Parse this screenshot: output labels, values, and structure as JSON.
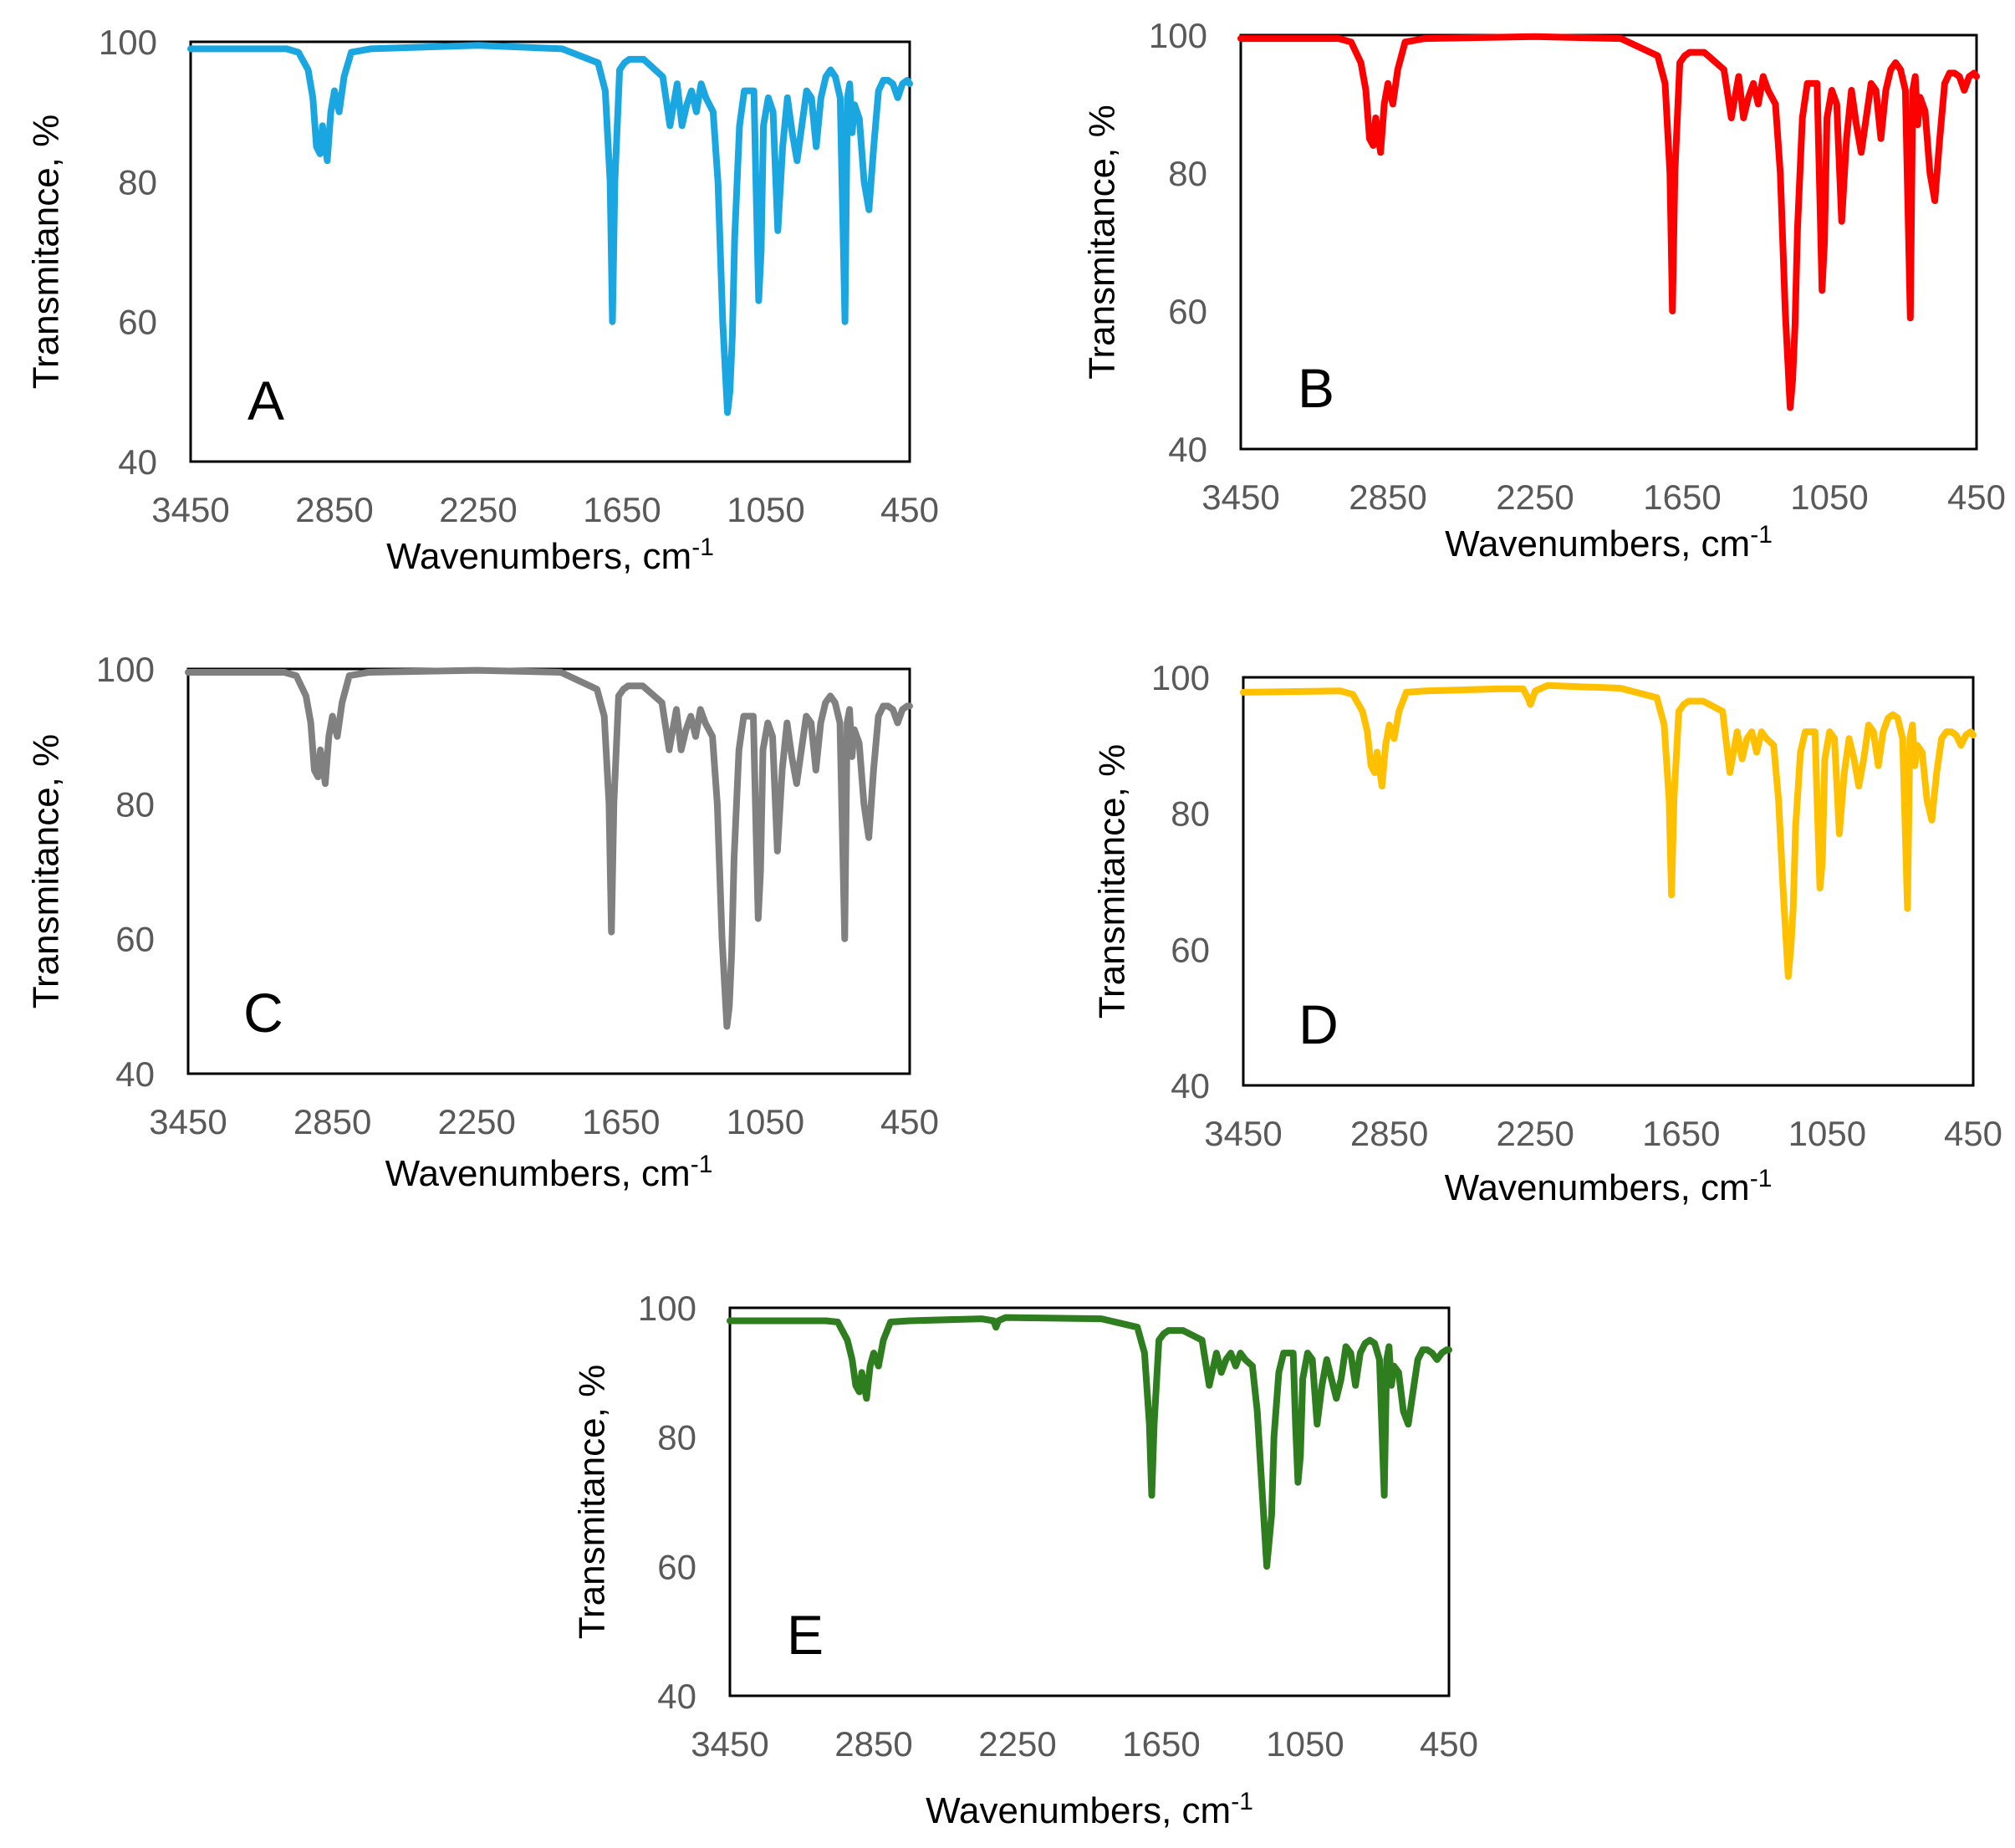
{
  "chart_data": [
    {
      "type": "line",
      "panel_label": "A",
      "color": "#1AA6E0",
      "xlabel": "Wavenumbers, cm",
      "xlabel_sup": "-1",
      "ylabel": "Transmitance, %",
      "xlim": [
        3450,
        450
      ],
      "ylim": [
        40,
        100
      ],
      "x_ticks": [
        "3450",
        "2850",
        "2250",
        "1650",
        "1050",
        "450"
      ],
      "y_ticks": [
        "40",
        "60",
        "80",
        "100"
      ],
      "series": [
        {
          "name": "A",
          "x": [
            3450,
            3050,
            3000,
            2960,
            2940,
            2925,
            2910,
            2900,
            2880,
            2865,
            2850,
            2830,
            2810,
            2780,
            2700,
            2250,
            1900,
            1750,
            1720,
            1700,
            1690,
            1680,
            1660,
            1640,
            1620,
            1560,
            1480,
            1450,
            1420,
            1400,
            1380,
            1360,
            1340,
            1320,
            1300,
            1270,
            1250,
            1230,
            1210,
            1200,
            1190,
            1180,
            1160,
            1140,
            1100,
            1090,
            1080,
            1070,
            1060,
            1040,
            1020,
            1000,
            980,
            960,
            940,
            920,
            900,
            880,
            860,
            840,
            820,
            800,
            780,
            760,
            740,
            720,
            710,
            700,
            690,
            680,
            660,
            640,
            620,
            600,
            580,
            560,
            540,
            520,
            500,
            480,
            460,
            450
          ],
          "y": [
            99,
            99,
            98.5,
            96,
            92,
            85,
            84,
            88,
            83,
            90,
            93,
            90,
            95,
            98.5,
            99,
            99.5,
            99,
            97,
            93,
            80,
            60,
            80,
            96,
            97,
            97.5,
            97.5,
            95,
            88,
            94,
            88,
            91,
            93,
            90,
            94,
            92,
            90,
            80,
            60,
            47,
            50,
            58,
            72,
            88,
            93,
            93,
            78,
            63,
            70,
            88,
            92,
            90,
            73,
            85,
            92,
            87,
            83,
            88,
            93,
            92,
            85,
            92,
            95,
            96,
            95,
            92,
            60,
            92,
            94,
            87,
            91,
            89,
            80,
            76,
            85,
            93,
            94.5,
            94.5,
            94,
            92,
            94,
            94.5,
            94
          ]
        }
      ]
    },
    {
      "type": "line",
      "panel_label": "B",
      "color": "#FF0000",
      "xlabel": "Wavenumbers, cm",
      "xlabel_sup": "-1",
      "ylabel": "Transmitance, %",
      "xlim": [
        3450,
        450
      ],
      "ylim": [
        40,
        100
      ],
      "x_ticks": [
        "3450",
        "2850",
        "2250",
        "1650",
        "1050",
        "450"
      ],
      "y_ticks": [
        "40",
        "60",
        "80",
        "100"
      ],
      "series": [
        {
          "name": "B",
          "x": [
            3450,
            3050,
            3000,
            2960,
            2940,
            2925,
            2910,
            2900,
            2880,
            2865,
            2850,
            2830,
            2810,
            2780,
            2700,
            2250,
            1900,
            1750,
            1720,
            1700,
            1690,
            1680,
            1660,
            1640,
            1620,
            1560,
            1480,
            1450,
            1420,
            1400,
            1380,
            1360,
            1340,
            1320,
            1300,
            1270,
            1250,
            1230,
            1210,
            1200,
            1190,
            1180,
            1160,
            1140,
            1100,
            1090,
            1080,
            1070,
            1060,
            1040,
            1020,
            1000,
            980,
            960,
            940,
            920,
            900,
            880,
            860,
            840,
            820,
            800,
            780,
            760,
            740,
            720,
            710,
            700,
            690,
            680,
            660,
            640,
            620,
            600,
            580,
            560,
            540,
            520,
            500,
            480,
            460,
            450
          ],
          "y": [
            99.5,
            99.5,
            99,
            96,
            92,
            85,
            84,
            88,
            83,
            90,
            93,
            90,
            95,
            99,
            99.5,
            99.8,
            99.5,
            97,
            93,
            80,
            60,
            80,
            96,
            97,
            97.5,
            97.5,
            95,
            88,
            94,
            88,
            91,
            93,
            90,
            94,
            92,
            90,
            80,
            60,
            46,
            50,
            58,
            72,
            88,
            93,
            93,
            78,
            63,
            70,
            88,
            92,
            90,
            73,
            85,
            92,
            87,
            83,
            88,
            93,
            92,
            85,
            92,
            95,
            96,
            95,
            92,
            59,
            92,
            94,
            87,
            91,
            89,
            80,
            76,
            85,
            93,
            94.5,
            94.5,
            94,
            92,
            94,
            94.5,
            94
          ]
        }
      ]
    },
    {
      "type": "line",
      "panel_label": "C",
      "color": "#808080",
      "xlabel": "Wavenumbers, cm",
      "xlabel_sup": "-1",
      "ylabel": "Transmitance, %",
      "xlim": [
        3450,
        450
      ],
      "ylim": [
        40,
        100
      ],
      "x_ticks": [
        "3450",
        "2850",
        "2250",
        "1650",
        "1050",
        "450"
      ],
      "y_ticks": [
        "40",
        "60",
        "80",
        "100"
      ],
      "series": [
        {
          "name": "C",
          "x": [
            3450,
            3050,
            3000,
            2960,
            2940,
            2925,
            2910,
            2900,
            2880,
            2865,
            2850,
            2830,
            2810,
            2780,
            2700,
            2250,
            1900,
            1750,
            1720,
            1700,
            1690,
            1680,
            1660,
            1640,
            1620,
            1560,
            1480,
            1450,
            1420,
            1400,
            1380,
            1360,
            1340,
            1320,
            1300,
            1270,
            1250,
            1230,
            1210,
            1200,
            1190,
            1180,
            1160,
            1140,
            1100,
            1090,
            1080,
            1070,
            1060,
            1040,
            1020,
            1000,
            980,
            960,
            940,
            920,
            900,
            880,
            860,
            840,
            820,
            800,
            780,
            760,
            740,
            720,
            710,
            700,
            690,
            680,
            660,
            640,
            620,
            600,
            580,
            560,
            540,
            520,
            500,
            480,
            460,
            450
          ],
          "y": [
            99.5,
            99.5,
            99,
            96,
            92,
            85,
            84,
            88,
            83,
            90,
            93,
            90,
            95,
            99,
            99.5,
            99.8,
            99.5,
            97,
            93,
            80,
            61,
            80,
            96,
            97,
            97.5,
            97.5,
            95,
            88,
            94,
            88,
            91,
            93,
            90,
            94,
            92,
            90,
            80,
            60,
            47,
            50,
            58,
            72,
            88,
            93,
            93,
            78,
            63,
            70,
            88,
            92,
            90,
            73,
            85,
            92,
            87,
            83,
            88,
            93,
            92,
            85,
            92,
            95,
            96,
            95,
            92,
            60,
            92,
            94,
            87,
            91,
            89,
            80,
            75,
            85,
            93,
            94.5,
            94.5,
            94,
            92,
            94,
            94.5,
            94.5
          ]
        }
      ]
    },
    {
      "type": "line",
      "panel_label": "D",
      "color": "#FFC000",
      "xlabel": "Wavenumbers, cm",
      "xlabel_sup": "-1",
      "ylabel": "Transmitance, %",
      "xlim": [
        3450,
        450
      ],
      "ylim": [
        40,
        100
      ],
      "x_ticks": [
        "3450",
        "2850",
        "2250",
        "1650",
        "1050",
        "450"
      ],
      "y_ticks": [
        "40",
        "60",
        "80",
        "100"
      ],
      "series": [
        {
          "name": "D",
          "x": [
            3450,
            3050,
            3000,
            2960,
            2940,
            2925,
            2910,
            2900,
            2880,
            2865,
            2850,
            2830,
            2810,
            2780,
            2700,
            2400,
            2300,
            2280,
            2270,
            2260,
            2250,
            2200,
            1900,
            1750,
            1720,
            1700,
            1690,
            1680,
            1660,
            1640,
            1620,
            1560,
            1480,
            1450,
            1420,
            1400,
            1380,
            1360,
            1340,
            1320,
            1300,
            1270,
            1250,
            1230,
            1210,
            1200,
            1190,
            1180,
            1160,
            1140,
            1100,
            1090,
            1080,
            1070,
            1060,
            1040,
            1020,
            1000,
            980,
            960,
            940,
            920,
            900,
            880,
            860,
            840,
            820,
            800,
            780,
            760,
            740,
            720,
            710,
            700,
            690,
            680,
            660,
            640,
            620,
            600,
            580,
            560,
            540,
            520,
            500,
            480,
            460,
            450
          ],
          "y": [
            97.8,
            98,
            97.5,
            95,
            92,
            87,
            86,
            89,
            84,
            90,
            93,
            91,
            95,
            97.8,
            98,
            98.3,
            98.3,
            97,
            96,
            97,
            98,
            98.8,
            98.4,
            97,
            93,
            82,
            68,
            82,
            95,
            96,
            96.5,
            96.5,
            95,
            86,
            92,
            88,
            91,
            92,
            89,
            92,
            91,
            90,
            82,
            68,
            56,
            60,
            66,
            78,
            89,
            92,
            92,
            80,
            69,
            73,
            88,
            92,
            91,
            77,
            86,
            91,
            88,
            84,
            88,
            93,
            92,
            87,
            92,
            94,
            94.5,
            94,
            91,
            66,
            91,
            93,
            87,
            90,
            89,
            82,
            79,
            86,
            91,
            92,
            92,
            91.5,
            90,
            91.5,
            92,
            91.5
          ]
        }
      ]
    },
    {
      "type": "line",
      "panel_label": "E",
      "color": "#2E7D1E",
      "xlabel": "Wavenumbers, cm",
      "xlabel_sup": "-1",
      "ylabel": "Transmitance, %",
      "xlim": [
        3450,
        450
      ],
      "ylim": [
        40,
        100
      ],
      "x_ticks": [
        "3450",
        "2850",
        "2250",
        "1650",
        "1050",
        "450"
      ],
      "y_ticks": [
        "40",
        "60",
        "80",
        "100"
      ],
      "series": [
        {
          "name": "E",
          "x": [
            3450,
            3050,
            3000,
            2960,
            2940,
            2925,
            2910,
            2900,
            2880,
            2865,
            2850,
            2830,
            2810,
            2780,
            2700,
            2400,
            2350,
            2340,
            2330,
            2300,
            1900,
            1750,
            1720,
            1700,
            1690,
            1680,
            1660,
            1640,
            1620,
            1560,
            1480,
            1450,
            1420,
            1400,
            1380,
            1360,
            1340,
            1320,
            1300,
            1270,
            1250,
            1230,
            1210,
            1200,
            1190,
            1180,
            1160,
            1140,
            1100,
            1090,
            1080,
            1070,
            1060,
            1040,
            1020,
            1000,
            980,
            960,
            940,
            920,
            900,
            880,
            860,
            840,
            820,
            800,
            780,
            760,
            740,
            720,
            710,
            700,
            690,
            680,
            660,
            640,
            620,
            600,
            580,
            560,
            540,
            520,
            500,
            480,
            460,
            450
          ],
          "y": [
            98,
            98,
            97.8,
            95,
            92,
            88,
            87,
            90,
            86,
            91,
            93,
            91,
            95,
            97.8,
            98,
            98.3,
            98,
            97,
            98,
            98.5,
            98.3,
            97,
            93,
            82,
            71,
            82,
            95,
            96,
            96.5,
            96.5,
            95,
            88,
            93,
            90,
            92,
            93,
            91,
            93,
            92,
            91,
            84,
            72,
            60,
            64,
            68,
            80,
            90,
            93,
            93,
            82,
            73,
            77,
            89,
            93,
            92,
            82,
            88,
            92,
            89,
            86,
            89,
            94,
            93,
            88,
            93,
            94.5,
            95,
            94.5,
            92,
            71,
            92,
            94,
            88,
            91,
            90,
            84,
            82,
            87,
            92,
            93.5,
            93.5,
            93,
            92,
            93,
            93.5,
            93.5
          ]
        }
      ]
    }
  ]
}
